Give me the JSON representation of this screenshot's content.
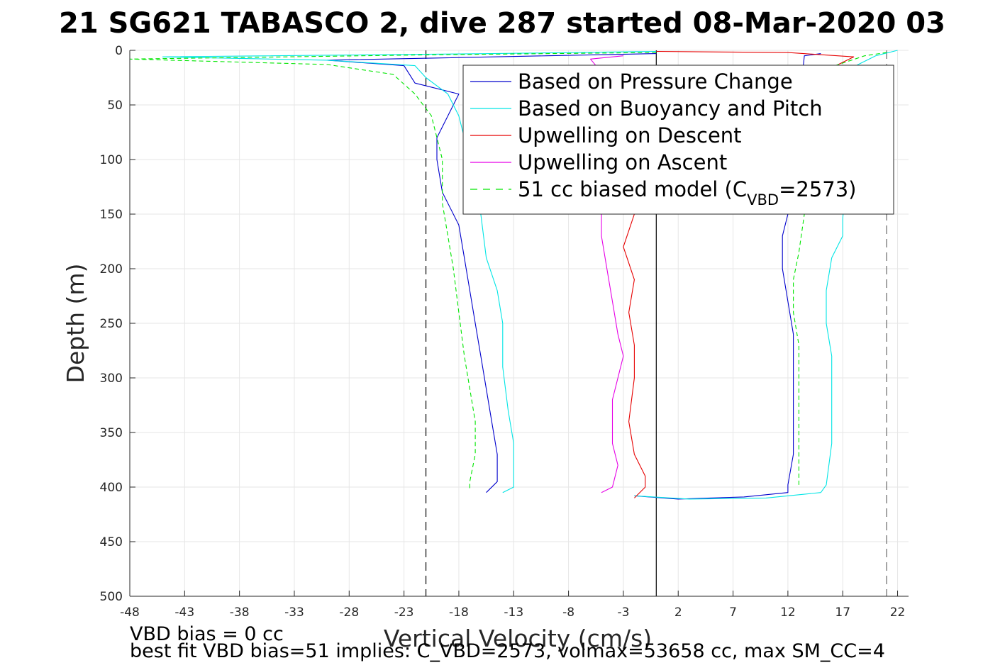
{
  "chart_data": {
    "type": "line",
    "title": "21 SG621 TABASCO 2, dive 287 started 08-Mar-2020 03",
    "xlabel": "Vertical Velocity (cm/s)",
    "ylabel": "Depth (m)",
    "xlim": [
      -48,
      23
    ],
    "ylim": [
      0,
      500
    ],
    "y_reversed": true,
    "grid": true,
    "legend_position": "top-right",
    "x_ticks": [
      -48,
      -43,
      -38,
      -33,
      -28,
      -23,
      -18,
      -13,
      -8,
      -3,
      2,
      7,
      12,
      17,
      22
    ],
    "y_ticks": [
      0,
      50,
      100,
      150,
      200,
      250,
      300,
      350,
      400,
      450,
      500
    ],
    "reference_lines": [
      {
        "x": 0,
        "style": "solid",
        "color": "#000000"
      },
      {
        "x": -21,
        "style": "dashed",
        "color": "#000000"
      },
      {
        "x": 21,
        "style": "dashed",
        "color": "#666666"
      }
    ],
    "series": [
      {
        "name": "Based on Pressure Change",
        "color": "#0000cc",
        "dash": false,
        "descent": [
          [
            0,
            3
          ],
          [
            -10,
            5
          ],
          [
            -30,
            9
          ],
          [
            -23,
            14
          ],
          [
            -22,
            30
          ],
          [
            -18,
            40
          ],
          [
            -19,
            60
          ],
          [
            -20,
            80
          ],
          [
            -20,
            100
          ],
          [
            -19.5,
            130
          ],
          [
            -18,
            160
          ],
          [
            -17.5,
            190
          ],
          [
            -17,
            220
          ],
          [
            -16.5,
            250
          ],
          [
            -16,
            280
          ],
          [
            -15.5,
            310
          ],
          [
            -15,
            340
          ],
          [
            -14.5,
            370
          ],
          [
            -14.5,
            395
          ],
          [
            -15.5,
            405
          ]
        ],
        "ascent": [
          [
            -2,
            408
          ],
          [
            2,
            411
          ],
          [
            8,
            409
          ],
          [
            12,
            405
          ],
          [
            12,
            398
          ],
          [
            12.5,
            370
          ],
          [
            12.5,
            340
          ],
          [
            12.5,
            300
          ],
          [
            12.5,
            260
          ],
          [
            12,
            230
          ],
          [
            11.5,
            200
          ],
          [
            11.5,
            170
          ],
          [
            12,
            150
          ],
          [
            13.5,
            5
          ],
          [
            15,
            3
          ]
        ]
      },
      {
        "name": "Based on Buoyancy and Pitch",
        "color": "#00e5e5",
        "dash": false,
        "descent": [
          [
            0,
            1
          ],
          [
            -15,
            3
          ],
          [
            -45,
            6
          ],
          [
            -30,
            9
          ],
          [
            -22,
            14
          ],
          [
            -21,
            25
          ],
          [
            -19,
            40
          ],
          [
            -18,
            60
          ],
          [
            -17,
            100
          ],
          [
            -16,
            150
          ],
          [
            -15.5,
            190
          ],
          [
            -14.5,
            220
          ],
          [
            -14,
            250
          ],
          [
            -14,
            290
          ],
          [
            -13.5,
            330
          ],
          [
            -13,
            360
          ],
          [
            -13,
            390
          ],
          [
            -13,
            400
          ],
          [
            -14,
            405
          ]
        ],
        "ascent": [
          [
            -2,
            408
          ],
          [
            3,
            411
          ],
          [
            10,
            410
          ],
          [
            15,
            405
          ],
          [
            15.5,
            398
          ],
          [
            16,
            360
          ],
          [
            16,
            320
          ],
          [
            16,
            280
          ],
          [
            15.5,
            250
          ],
          [
            15.5,
            220
          ],
          [
            16,
            190
          ],
          [
            17,
            170
          ],
          [
            17,
            155
          ],
          [
            18,
            15
          ],
          [
            20,
            5
          ],
          [
            22,
            0
          ]
        ]
      },
      {
        "name": "Upwelling on Descent",
        "color": "#e60000",
        "dash": false,
        "descent": [
          [
            0,
            1
          ],
          [
            12,
            2
          ],
          [
            18,
            6
          ],
          [
            -1,
            100
          ],
          [
            -2,
            150
          ],
          [
            -3,
            180
          ],
          [
            -2,
            210
          ],
          [
            -2.5,
            240
          ],
          [
            -2,
            270
          ],
          [
            -2,
            300
          ],
          [
            -2.5,
            340
          ],
          [
            -2,
            370
          ],
          [
            -1,
            390
          ],
          [
            -1,
            400
          ],
          [
            -2,
            410
          ]
        ],
        "ascent": []
      },
      {
        "name": "Upwelling on Ascent",
        "color": "#e600e6",
        "dash": false,
        "descent": [
          [
            -5,
            405
          ],
          [
            -4,
            400
          ],
          [
            -3.5,
            380
          ],
          [
            -4,
            360
          ],
          [
            -4,
            340
          ],
          [
            -4,
            320
          ],
          [
            -3.5,
            300
          ],
          [
            -3,
            280
          ],
          [
            -3.5,
            260
          ],
          [
            -4,
            230
          ],
          [
            -4.5,
            200
          ],
          [
            -5,
            170
          ],
          [
            -5,
            150
          ],
          [
            -5,
            20
          ],
          [
            -6,
            8
          ],
          [
            -3,
            5
          ]
        ],
        "ascent": []
      },
      {
        "name": "51 cc biased model (C",
        "name_sub": "VBD",
        "name_tail": "=2573)",
        "color": "#00e600",
        "dash": true,
        "descent": [
          [
            0,
            2
          ],
          [
            -20,
            4
          ],
          [
            -48,
            8
          ],
          [
            -30,
            13
          ],
          [
            -24,
            22
          ],
          [
            -22,
            40
          ],
          [
            -20.5,
            60
          ],
          [
            -20,
            80
          ],
          [
            -19.5,
            100
          ],
          [
            -19.5,
            140
          ],
          [
            -19,
            170
          ],
          [
            -18.5,
            200
          ],
          [
            -18,
            240
          ],
          [
            -17.5,
            280
          ],
          [
            -17,
            310
          ],
          [
            -16.5,
            340
          ],
          [
            -16.5,
            370
          ],
          [
            -17,
            395
          ],
          [
            -17,
            403
          ]
        ],
        "ascent": [
          [
            13,
            398
          ],
          [
            13,
            370
          ],
          [
            13,
            340
          ],
          [
            13,
            300
          ],
          [
            13,
            270
          ],
          [
            12.5,
            240
          ],
          [
            12.5,
            210
          ],
          [
            13,
            185
          ],
          [
            13.5,
            150
          ],
          [
            16,
            15
          ],
          [
            19,
            5
          ],
          [
            21,
            2
          ]
        ]
      }
    ]
  },
  "notes": {
    "line1": "VBD bias = 0 cc",
    "line2": "best fit VBD bias=51 implies: C_VBD=2573, volmax=53658 cc, max SM_CC=4"
  }
}
